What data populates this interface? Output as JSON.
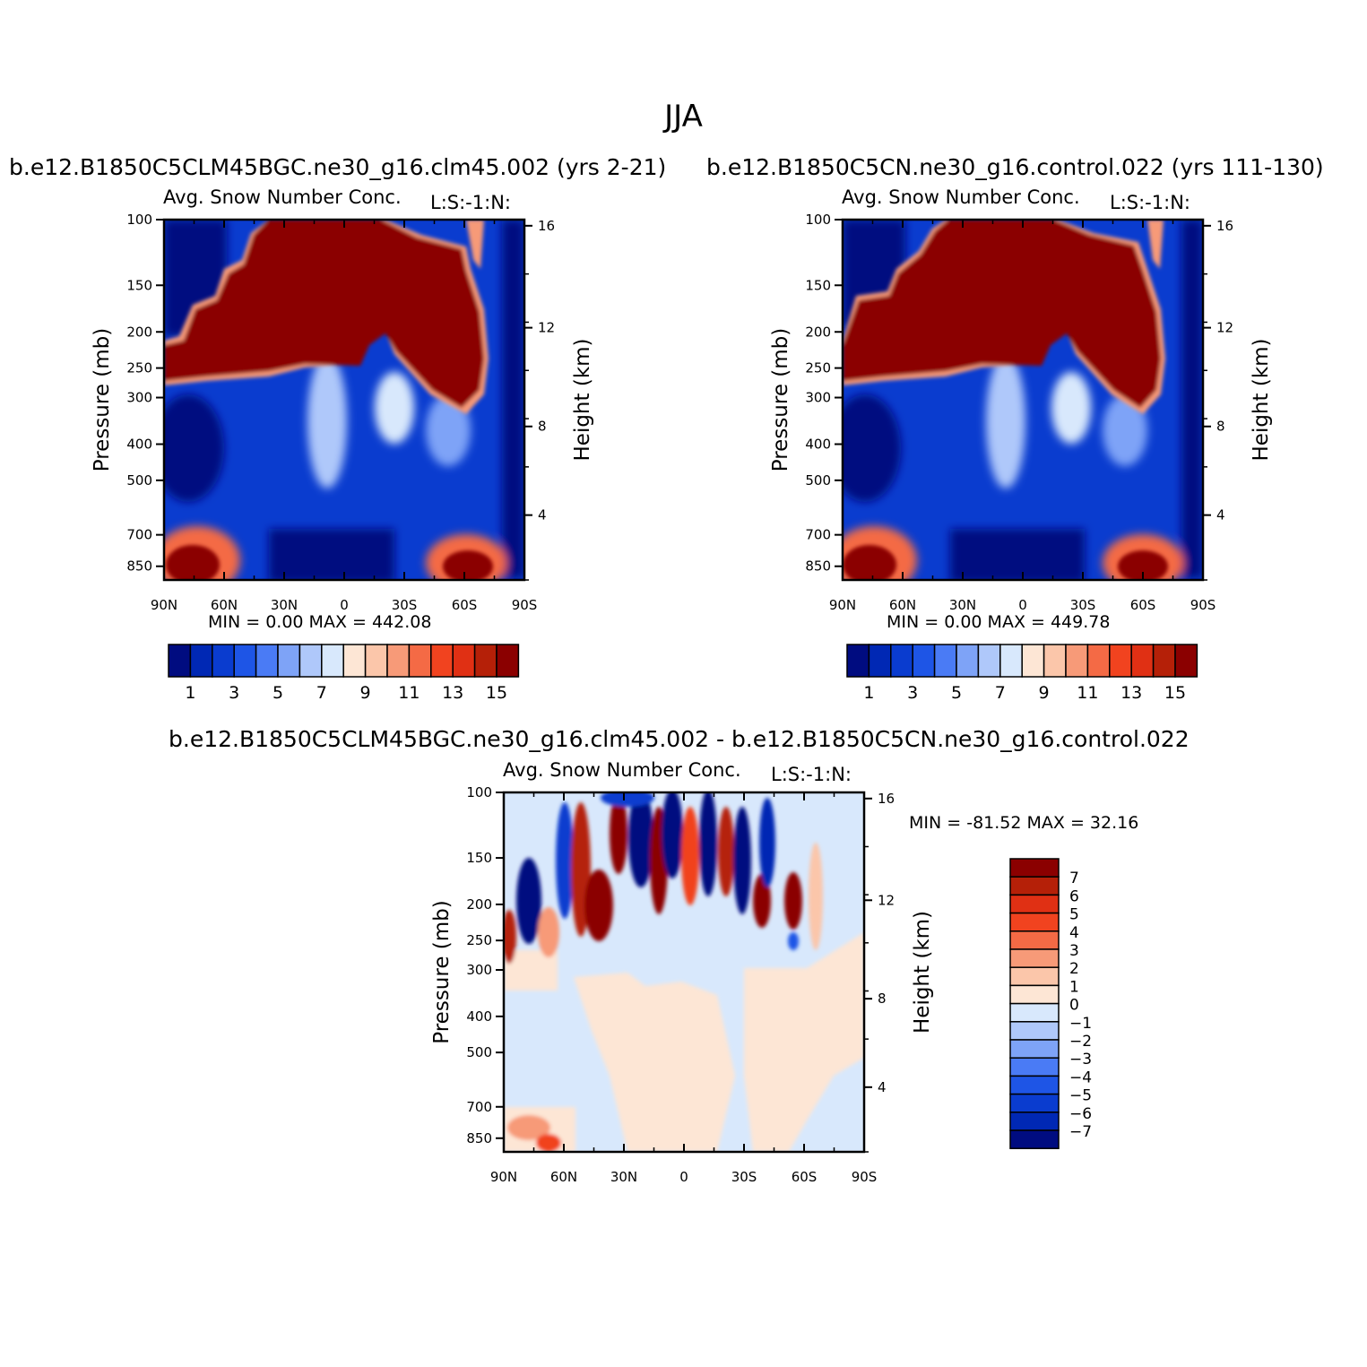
{
  "page": {
    "main_title": "JJA"
  },
  "colors": {
    "abs": [
      "#000c80",
      "#0028b4",
      "#0a3ccf",
      "#1e55e6",
      "#4a7bf5",
      "#7ea3f7",
      "#afc8fa",
      "#d8e8fc",
      "#fde6d5",
      "#fbc6aa",
      "#f79a78",
      "#f46a45",
      "#f1431f",
      "#e03014",
      "#b52008",
      "#8b0000"
    ],
    "diff": [
      "#000c80",
      "#0028b4",
      "#0a3ccf",
      "#1e55e6",
      "#4a7bf5",
      "#7ea3f7",
      "#afc8fa",
      "#d8e8fc",
      "#fde6d5",
      "#fbc6aa",
      "#f79a78",
      "#f46a45",
      "#f1431f",
      "#e03014",
      "#b52008",
      "#8b0000"
    ]
  },
  "chart_data": [
    {
      "type": "heatmap",
      "id": "panel-left",
      "case_title": "b.e12.B1850C5CLM45BGC.ne30_g16.clm45.002 (yrs 2-21)",
      "title": "Avg. Snow Number Conc.",
      "corner_label": "L:S:-1:N:",
      "ylabel": "Pressure (mb)",
      "ylabel_right": "Height (km)",
      "x_ticks": [
        "90N",
        "60N",
        "30N",
        "0",
        "30S",
        "60S",
        "90S"
      ],
      "y_ticks": [
        "100",
        "150",
        "200",
        "250",
        "300",
        "400",
        "500",
        "700",
        "850"
      ],
      "y_ticks_right": [
        "16",
        "12",
        "8",
        "4"
      ],
      "stats": "MIN =     0.00   MAX =  442.08",
      "colorbar_labels": [
        "1",
        "3",
        "5",
        "7",
        "9",
        "11",
        "13",
        "15"
      ]
    },
    {
      "type": "heatmap",
      "id": "panel-right",
      "case_title": "b.e12.B1850C5CN.ne30_g16.control.022 (yrs 111-130)",
      "title": "Avg. Snow Number Conc.",
      "corner_label": "L:S:-1:N:",
      "ylabel": "Pressure (mb)",
      "ylabel_right": "Height (km)",
      "x_ticks": [
        "90N",
        "60N",
        "30N",
        "0",
        "30S",
        "60S",
        "90S"
      ],
      "y_ticks": [
        "100",
        "150",
        "200",
        "250",
        "300",
        "400",
        "500",
        "700",
        "850"
      ],
      "y_ticks_right": [
        "16",
        "12",
        "8",
        "4"
      ],
      "stats": "MIN =     0.00   MAX =  449.78",
      "colorbar_labels": [
        "1",
        "3",
        "5",
        "7",
        "9",
        "11",
        "13",
        "15"
      ]
    },
    {
      "type": "heatmap",
      "id": "panel-diff",
      "case_title": "b.e12.B1850C5CLM45BGC.ne30_g16.clm45.002 - b.e12.B1850C5CN.ne30_g16.control.022",
      "title": "Avg. Snow Number Conc.",
      "corner_label": "L:S:-1:N:",
      "ylabel": "Pressure (mb)",
      "ylabel_right": "Height (km)",
      "x_ticks": [
        "90N",
        "60N",
        "30N",
        "0",
        "30S",
        "60S",
        "90S"
      ],
      "y_ticks": [
        "100",
        "150",
        "200",
        "250",
        "300",
        "400",
        "500",
        "700",
        "850"
      ],
      "y_ticks_right": [
        "16",
        "12",
        "8",
        "4"
      ],
      "stats": "MIN = -81.52   MAX =   32.16",
      "colorbar_labels": [
        "7",
        "6",
        "5",
        "4",
        "3",
        "2",
        "1",
        "0",
        "-1",
        "-2",
        "-3",
        "-4",
        "-5",
        "-6",
        "-7"
      ]
    }
  ]
}
